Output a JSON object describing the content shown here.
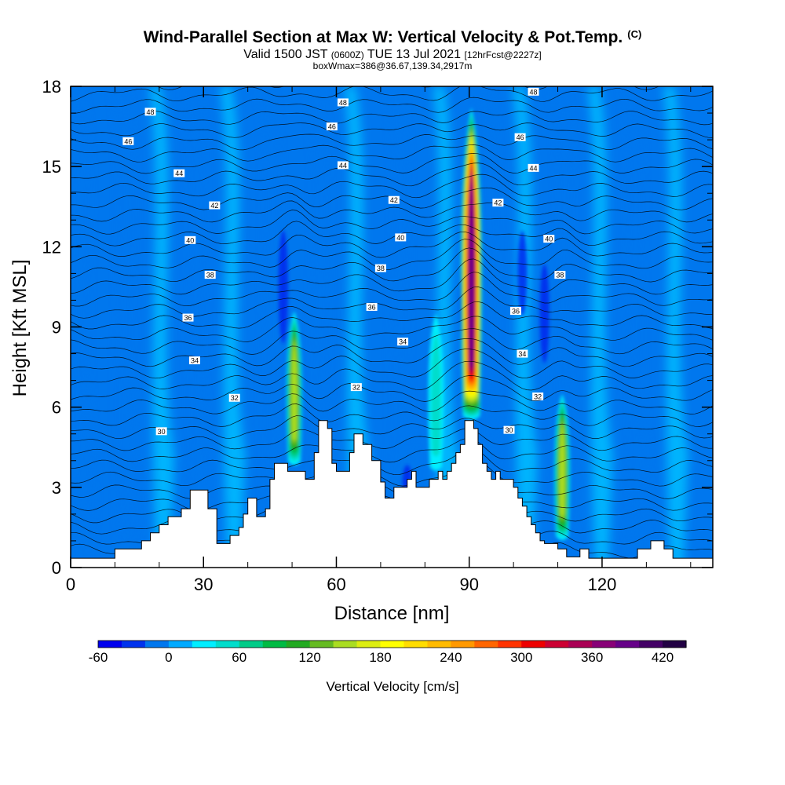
{
  "chart_data": {
    "type": "heatmap",
    "title": "Wind-Parallel Section at Max W: Vertical Velocity & Pot.Temp.",
    "title_mark": "(C)",
    "subtitle_main": "Valid 1500 JST",
    "subtitle_utc": "(0600Z)",
    "subtitle_date": "TUE 13 Jul 2021",
    "subtitle_fcst": "[12hrFcst@2227z]",
    "subtitle_box": "boxWmax=386@36.67,139.34,2917m",
    "xlabel": "Distance [nm]",
    "ylabel": "Height [Kft MSL]",
    "xlim": [
      0,
      145
    ],
    "ylim": [
      0,
      18
    ],
    "xticks": [
      0,
      30,
      60,
      90,
      120
    ],
    "yticks": [
      0,
      3,
      6,
      9,
      12,
      15,
      18
    ],
    "colorbar": {
      "label": "Vertical Velocity [cm/s]",
      "min": -60,
      "max": 440,
      "step": 20,
      "tick_values": [
        -60,
        0,
        60,
        120,
        180,
        240,
        300,
        360,
        420
      ],
      "colors": [
        "#0000ee",
        "#0033ee",
        "#0077ee",
        "#00aaff",
        "#00eeff",
        "#00ddcc",
        "#00cc88",
        "#00bb44",
        "#22aa22",
        "#66bb22",
        "#aadd22",
        "#ddee11",
        "#ffff00",
        "#ffdd00",
        "#ffbb00",
        "#ff9900",
        "#ff6600",
        "#ff3300",
        "#ee0000",
        "#cc0033",
        "#aa0055",
        "#880077",
        "#660088",
        "#440066",
        "#220044"
      ]
    },
    "updraft_cores": [
      {
        "x": 90.5,
        "bottom": 5.5,
        "top": 17.2,
        "w_max": 386
      },
      {
        "x": 50.5,
        "bottom": 3.8,
        "top": 9.6,
        "w_max": 150
      },
      {
        "x": 111,
        "bottom": 1.0,
        "top": 6.5,
        "w_max": 140
      },
      {
        "x": 82.5,
        "bottom": 3.6,
        "top": 9.5,
        "w_max": 50
      }
    ],
    "terrain": [
      [
        0,
        0.35
      ],
      [
        10,
        0.35
      ],
      [
        10,
        0.7
      ],
      [
        16,
        0.7
      ],
      [
        16,
        1.0
      ],
      [
        18,
        1.0
      ],
      [
        18,
        1.3
      ],
      [
        20,
        1.3
      ],
      [
        20,
        1.6
      ],
      [
        22,
        1.6
      ],
      [
        22,
        1.9
      ],
      [
        25,
        1.9
      ],
      [
        25,
        2.2
      ],
      [
        27,
        2.2
      ],
      [
        27,
        2.9
      ],
      [
        31,
        2.9
      ],
      [
        31,
        2.2
      ],
      [
        33,
        2.2
      ],
      [
        33,
        0.9
      ],
      [
        36,
        0.9
      ],
      [
        36,
        1.2
      ],
      [
        38,
        1.2
      ],
      [
        38,
        1.5
      ],
      [
        39,
        1.5
      ],
      [
        39,
        2.0
      ],
      [
        40,
        2.0
      ],
      [
        40,
        2.6
      ],
      [
        42,
        2.6
      ],
      [
        42,
        1.9
      ],
      [
        44,
        1.9
      ],
      [
        44,
        2.2
      ],
      [
        45,
        2.2
      ],
      [
        45,
        3.3
      ],
      [
        46,
        3.3
      ],
      [
        46,
        3.9
      ],
      [
        49,
        3.9
      ],
      [
        49,
        3.6
      ],
      [
        53,
        3.6
      ],
      [
        53,
        3.3
      ],
      [
        55,
        3.3
      ],
      [
        55,
        4.3
      ],
      [
        56,
        4.3
      ],
      [
        56,
        5.5
      ],
      [
        58,
        5.5
      ],
      [
        58,
        5.2
      ],
      [
        59,
        5.2
      ],
      [
        59,
        3.9
      ],
      [
        60,
        3.9
      ],
      [
        60,
        3.6
      ],
      [
        63,
        3.6
      ],
      [
        63,
        4.3
      ],
      [
        64,
        4.3
      ],
      [
        64,
        5.0
      ],
      [
        66,
        5.0
      ],
      [
        66,
        4.6
      ],
      [
        68,
        4.6
      ],
      [
        68,
        4.0
      ],
      [
        70,
        4.0
      ],
      [
        70,
        3.2
      ],
      [
        71,
        3.2
      ],
      [
        71,
        2.6
      ],
      [
        73,
        2.6
      ],
      [
        73,
        3.0
      ],
      [
        76,
        3.0
      ],
      [
        76,
        3.3
      ],
      [
        77,
        3.3
      ],
      [
        77,
        3.6
      ],
      [
        78,
        3.6
      ],
      [
        78,
        3.0
      ],
      [
        81,
        3.0
      ],
      [
        81,
        3.3
      ],
      [
        83,
        3.3
      ],
      [
        83,
        3.6
      ],
      [
        84,
        3.6
      ],
      [
        84,
        3.3
      ],
      [
        85,
        3.3
      ],
      [
        85,
        3.6
      ],
      [
        86,
        3.6
      ],
      [
        86,
        3.9
      ],
      [
        87,
        3.9
      ],
      [
        87,
        4.3
      ],
      [
        88,
        4.3
      ],
      [
        88,
        4.6
      ],
      [
        89,
        4.6
      ],
      [
        89,
        5.5
      ],
      [
        91,
        5.5
      ],
      [
        91,
        5.2
      ],
      [
        92,
        5.2
      ],
      [
        92,
        4.6
      ],
      [
        93,
        4.6
      ],
      [
        93,
        3.9
      ],
      [
        94,
        3.9
      ],
      [
        94,
        3.6
      ],
      [
        95,
        3.6
      ],
      [
        95,
        3.3
      ],
      [
        96,
        3.3
      ],
      [
        96,
        3.6
      ],
      [
        97,
        3.6
      ],
      [
        97,
        3.3
      ],
      [
        100,
        3.3
      ],
      [
        100,
        3.0
      ],
      [
        101,
        3.0
      ],
      [
        101,
        2.6
      ],
      [
        102,
        2.6
      ],
      [
        102,
        2.3
      ],
      [
        103,
        2.3
      ],
      [
        103,
        1.9
      ],
      [
        104,
        1.9
      ],
      [
        104,
        1.6
      ],
      [
        105,
        1.6
      ],
      [
        105,
        1.3
      ],
      [
        106,
        1.3
      ],
      [
        106,
        1.0
      ],
      [
        107,
        1.0
      ],
      [
        107,
        0.9
      ],
      [
        110,
        0.9
      ],
      [
        110,
        0.7
      ],
      [
        112,
        0.7
      ],
      [
        112,
        0.4
      ],
      [
        115,
        0.4
      ],
      [
        115,
        0.7
      ],
      [
        117,
        0.7
      ],
      [
        117,
        0.35
      ],
      [
        128,
        0.35
      ],
      [
        128,
        0.7
      ],
      [
        131,
        0.7
      ],
      [
        131,
        1.0
      ],
      [
        134,
        1.0
      ],
      [
        134,
        0.7
      ],
      [
        136,
        0.7
      ],
      [
        136,
        0.35
      ],
      [
        145,
        0.35
      ]
    ],
    "theta_labels": [
      {
        "text": "48",
        "x": 18,
        "y": 17.05
      },
      {
        "text": "48",
        "x": 61.5,
        "y": 17.4
      },
      {
        "text": "48",
        "x": 104.5,
        "y": 17.8
      },
      {
        "text": "46",
        "x": 13,
        "y": 15.95
      },
      {
        "text": "46",
        "x": 59,
        "y": 16.5
      },
      {
        "text": "46",
        "x": 101.5,
        "y": 16.1
      },
      {
        "text": "44",
        "x": 24.5,
        "y": 14.75
      },
      {
        "text": "44",
        "x": 61.5,
        "y": 15.05
      },
      {
        "text": "44",
        "x": 104.5,
        "y": 14.95
      },
      {
        "text": "42",
        "x": 32.5,
        "y": 13.55
      },
      {
        "text": "42",
        "x": 73,
        "y": 13.75
      },
      {
        "text": "42",
        "x": 96.5,
        "y": 13.65
      },
      {
        "text": "40",
        "x": 27,
        "y": 12.25
      },
      {
        "text": "40",
        "x": 74.5,
        "y": 12.35
      },
      {
        "text": "40",
        "x": 108,
        "y": 12.3
      },
      {
        "text": "38",
        "x": 31.5,
        "y": 10.95
      },
      {
        "text": "38",
        "x": 70,
        "y": 11.2
      },
      {
        "text": "38",
        "x": 110.5,
        "y": 10.95
      },
      {
        "text": "36",
        "x": 26.5,
        "y": 9.35
      },
      {
        "text": "36",
        "x": 68,
        "y": 9.75
      },
      {
        "text": "36",
        "x": 100.5,
        "y": 9.6
      },
      {
        "text": "34",
        "x": 28,
        "y": 7.75
      },
      {
        "text": "34",
        "x": 75,
        "y": 8.45
      },
      {
        "text": "34",
        "x": 102,
        "y": 8.0
      },
      {
        "text": "32",
        "x": 37,
        "y": 6.35
      },
      {
        "text": "32",
        "x": 64.5,
        "y": 6.75
      },
      {
        "text": "32",
        "x": 105.5,
        "y": 6.4
      },
      {
        "text": "30",
        "x": 20.5,
        "y": 5.1
      },
      {
        "text": "30",
        "x": 99,
        "y": 5.15
      }
    ]
  }
}
